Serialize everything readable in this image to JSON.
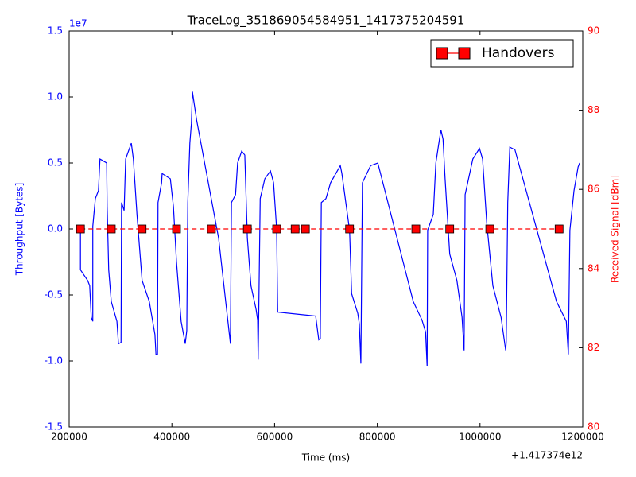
{
  "chart_data": {
    "type": "line",
    "title": "TraceLog_351869054584951_1417375204591",
    "xlabel": "Time (ms)",
    "ylabel": "Throughput [Bytes]",
    "y2label": "Received Signal [dBm]",
    "x_offset_text": "+1.417374e12",
    "y_offset_text": "1e7",
    "xlim": [
      200000,
      1200000
    ],
    "xticks": [
      200000,
      400000,
      600000,
      800000,
      1000000,
      1200000
    ],
    "ylim": [
      -1.5,
      1.5
    ],
    "yticks": [
      -1.5,
      {
        "value": -1,
        "label": "-1.0"
      },
      -0.5,
      {
        "value": 0,
        "label": "0.0"
      },
      0.5,
      {
        "value": 1,
        "label": "1.0"
      },
      1.5
    ],
    "y2lim": [
      80,
      90
    ],
    "y2ticks": [
      80,
      82,
      84,
      86,
      88,
      90
    ],
    "y_color": "#0000ff",
    "y2_color": "#ff0000",
    "legend": "upper right",
    "series": [
      {
        "color": "#0000ff",
        "axis": "y",
        "style": "solid",
        "x": [
          222000,
          222000,
          236000,
          240000,
          243000,
          246000,
          246000,
          251000,
          257000,
          260000,
          273000,
          274000,
          277000,
          282000,
          293000,
          296000,
          301000,
          302000,
          307000,
          310000,
          321000,
          325000,
          332000,
          342000,
          356000,
          367000,
          369000,
          372000,
          373000,
          380000,
          381000,
          397000,
          403000,
          409000,
          418000,
          426000,
          429000,
          431000,
          435000,
          438000,
          440000,
          448000,
          491000,
          514000,
          516000,
          524000,
          528000,
          536000,
          542000,
          547000,
          554000,
          564000,
          567000,
          568000,
          572000,
          581000,
          592000,
          598000,
          604000,
          606000,
          680000,
          686000,
          689000,
          691000,
          700000,
          709000,
          728000,
          731000,
          746000,
          750000,
          762000,
          765000,
          768000,
          771000,
          787000,
          801000,
          870000,
          887000,
          894000,
          897000,
          898000,
          909000,
          914000,
          921000,
          924000,
          928000,
          932000,
          941000,
          955000,
          965000,
          969000,
          971000,
          986000,
          999000,
          1005000,
          1013000,
          1025000,
          1041000,
          1050000,
          1051000,
          1054000,
          1058000,
          1068000,
          1149000,
          1168000,
          1172000,
          1175000,
          1183000,
          1191000,
          1194000
        ],
        "values": [
          0,
          -0.31,
          -0.39,
          -0.43,
          -0.67,
          -0.7,
          0.02,
          0.23,
          0.29,
          0.53,
          0.5,
          0.17,
          -0.31,
          -0.55,
          -0.7,
          -0.87,
          -0.86,
          0.2,
          0.14,
          0.53,
          0.65,
          0.53,
          0.11,
          -0.39,
          -0.55,
          -0.8,
          -0.95,
          -0.95,
          0.2,
          0.35,
          0.42,
          0.38,
          0.17,
          -0.25,
          -0.7,
          -0.87,
          -0.77,
          0.2,
          0.65,
          0.8,
          1.04,
          0.83,
          -0.07,
          -0.87,
          0.2,
          0.26,
          0.5,
          0.59,
          0.56,
          -0.07,
          -0.43,
          -0.61,
          -0.69,
          -0.99,
          0.23,
          0.38,
          0.44,
          0.35,
          0,
          -0.63,
          -0.66,
          -0.84,
          -0.83,
          0.2,
          0.23,
          0.35,
          0.48,
          0.42,
          -0.01,
          -0.49,
          -0.64,
          -0.72,
          -1.02,
          0.35,
          0.48,
          0.5,
          -0.55,
          -0.69,
          -0.78,
          -1.04,
          -0.01,
          0.11,
          0.5,
          0.68,
          0.75,
          0.68,
          0.38,
          -0.19,
          -0.39,
          -0.67,
          -0.92,
          0.26,
          0.53,
          0.61,
          0.53,
          0.05,
          -0.43,
          -0.67,
          -0.92,
          -0.86,
          0.2,
          0.62,
          0.6,
          -0.55,
          -0.7,
          -0.95,
          -0.01,
          0.29,
          0.47,
          0.5
        ]
      },
      {
        "name": "Handovers",
        "color": "#ff0000",
        "axis": "y2",
        "style": "dashed",
        "marker": "square",
        "x": [
          222000,
          282000,
          342000,
          409000,
          477000,
          547000,
          604000,
          640000,
          660000,
          746000,
          875000,
          941000,
          1019000,
          1154000
        ],
        "values": [
          85,
          85,
          85,
          85,
          85,
          85,
          85,
          85,
          85,
          85,
          85,
          85,
          85,
          85
        ]
      }
    ]
  }
}
